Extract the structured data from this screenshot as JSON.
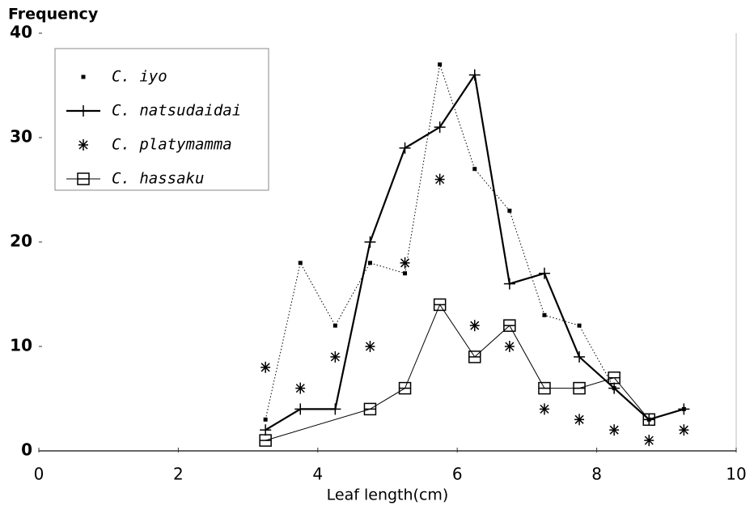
{
  "chart_data": {
    "type": "line",
    "ylabel": "Frequency",
    "xlabel": "Leaf length(cm)",
    "xlim": [
      0,
      10
    ],
    "xticks": [
      0,
      2,
      4,
      6,
      8,
      10
    ],
    "ylim": [
      0,
      40
    ],
    "yticks": [
      0,
      10,
      20,
      30,
      40
    ],
    "legend": "upper left",
    "series": [
      {
        "name": "C. iyo",
        "color": "#000000",
        "marker": "dot",
        "line": "dotted",
        "x": [
          3.25,
          3.75,
          4.25,
          4.75,
          5.25,
          5.75,
          6.25,
          6.75,
          7.25,
          7.75,
          8.25,
          8.75,
          9.25
        ],
        "values": [
          3,
          18,
          12,
          18,
          17,
          37,
          27,
          23,
          13,
          12,
          6,
          3,
          4
        ]
      },
      {
        "name": "C. natsudaidai",
        "color": "#000000",
        "marker": "plus",
        "line": "solid",
        "x": [
          3.25,
          3.75,
          4.25,
          4.75,
          5.25,
          5.75,
          6.25,
          6.75,
          7.25,
          7.75,
          8.25,
          8.75,
          9.25
        ],
        "values": [
          2,
          4,
          4,
          20,
          29,
          31,
          36,
          16,
          17,
          9,
          6,
          3,
          4
        ]
      },
      {
        "name": "C. platymamma",
        "color": "#000000",
        "marker": "asterisk",
        "line": "none",
        "x": [
          3.25,
          3.75,
          4.25,
          4.75,
          5.25,
          5.75,
          6.25,
          6.75,
          7.25,
          7.75,
          8.25,
          8.75,
          9.25
        ],
        "values": [
          8,
          6,
          9,
          10,
          18,
          26,
          12,
          10,
          4,
          3,
          2,
          1,
          2
        ]
      },
      {
        "name": "C. hassaku",
        "color": "#000000",
        "marker": "square",
        "line": "thin",
        "x": [
          3.25,
          4.75,
          5.25,
          5.75,
          6.25,
          6.75,
          7.25,
          7.75,
          8.25,
          8.75
        ],
        "values": [
          1,
          4,
          6,
          14,
          9,
          12,
          6,
          6,
          7,
          3
        ]
      }
    ]
  }
}
